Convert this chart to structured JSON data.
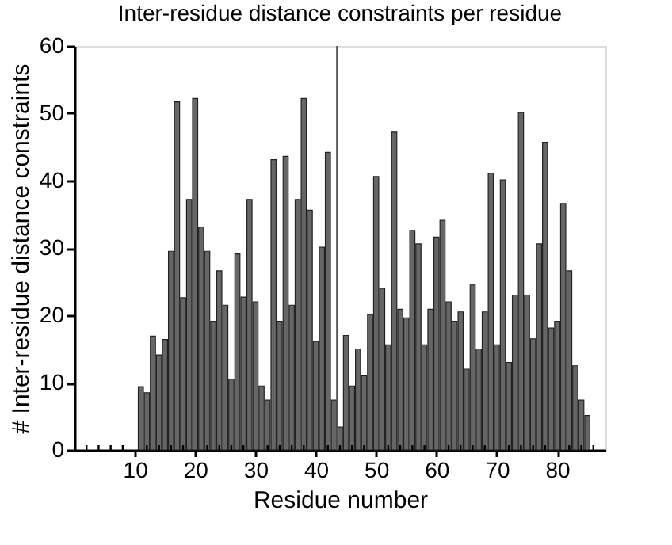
{
  "chart_data": {
    "type": "bar",
    "title": "Inter-residue distance constraints per residue",
    "xlabel": "Residue number",
    "ylabel": "# Inter-residue distance constraints",
    "x": [
      11,
      12,
      13,
      14,
      15,
      16,
      17,
      18,
      19,
      20,
      21,
      22,
      23,
      24,
      25,
      26,
      27,
      28,
      29,
      30,
      31,
      32,
      33,
      34,
      35,
      36,
      37,
      38,
      39,
      40,
      41,
      42,
      43,
      44,
      45,
      46,
      47,
      48,
      49,
      50,
      51,
      52,
      53,
      54,
      55,
      56,
      57,
      58,
      59,
      60,
      61,
      62,
      63,
      64,
      65,
      66,
      67,
      68,
      69,
      70,
      71,
      72,
      73,
      74,
      75,
      76,
      77,
      78,
      79,
      80,
      81,
      82,
      83,
      84,
      85
    ],
    "values": [
      9.4,
      8.5,
      16.9,
      14.1,
      16.4,
      29.5,
      51.7,
      22.6,
      37.2,
      52.2,
      33.1,
      29.5,
      19.1,
      26.6,
      21.5,
      10.5,
      29.1,
      22.7,
      37.2,
      22,
      9.5,
      7.4,
      43.1,
      19.1,
      43.6,
      21.5,
      37.2,
      52.2,
      35.6,
      16.1,
      30.1,
      44.2,
      7.4,
      3.4,
      17,
      9.5,
      15,
      11,
      20.1,
      40.6,
      24,
      15.6,
      47.2,
      20.9,
      19.6,
      32.6,
      30.6,
      15.6,
      20.9,
      31.6,
      34.1,
      22,
      19.1,
      20.5,
      12,
      24.5,
      15,
      20.5,
      41.1,
      15.6,
      40.1,
      13,
      23,
      50.1,
      23,
      16.5,
      30.6,
      45.7,
      18.1,
      19.1,
      36.6,
      26.6,
      12.5,
      7.4,
      5.1
    ],
    "color": "#666666",
    "xlim": [
      0,
      88
    ],
    "xticks": [
      {
        "value": 2,
        "label": null
      },
      {
        "value": 4,
        "label": null
      },
      {
        "value": 6,
        "label": null
      },
      {
        "value": 8,
        "label": null
      },
      10,
      {
        "value": 12,
        "label": null
      },
      {
        "value": 14,
        "label": null
      },
      {
        "value": 16,
        "label": null
      },
      {
        "value": 18,
        "label": null
      },
      20,
      {
        "value": 22,
        "label": null
      },
      {
        "value": 24,
        "label": null
      },
      {
        "value": 26,
        "label": null
      },
      {
        "value": 28,
        "label": null
      },
      30,
      {
        "value": 32,
        "label": null
      },
      {
        "value": 34,
        "label": null
      },
      {
        "value": 36,
        "label": null
      },
      {
        "value": 38,
        "label": null
      },
      40,
      {
        "value": 42,
        "label": null
      },
      {
        "value": 44,
        "label": null
      },
      {
        "value": 46,
        "label": null
      },
      {
        "value": 48,
        "label": null
      },
      50,
      {
        "value": 52,
        "label": null
      },
      {
        "value": 54,
        "label": null
      },
      {
        "value": 56,
        "label": null
      },
      {
        "value": 58,
        "label": null
      },
      60,
      {
        "value": 62,
        "label": null
      },
      {
        "value": 64,
        "label": null
      },
      {
        "value": 66,
        "label": null
      },
      {
        "value": 68,
        "label": null
      },
      70,
      {
        "value": 72,
        "label": null
      },
      {
        "value": 74,
        "label": null
      },
      {
        "value": 76,
        "label": null
      },
      {
        "value": 78,
        "label": null
      },
      80,
      {
        "value": 82,
        "label": null
      },
      {
        "value": 84,
        "label": null
      },
      {
        "value": 86,
        "label": null
      }
    ],
    "ylim": [
      0,
      60
    ],
    "yticks": [
      0,
      10,
      20,
      30,
      40,
      50,
      60
    ],
    "ref_lines": [
      {
        "axis": "x",
        "value": 43.5,
        "color": "#555555"
      }
    ],
    "grid": false
  }
}
